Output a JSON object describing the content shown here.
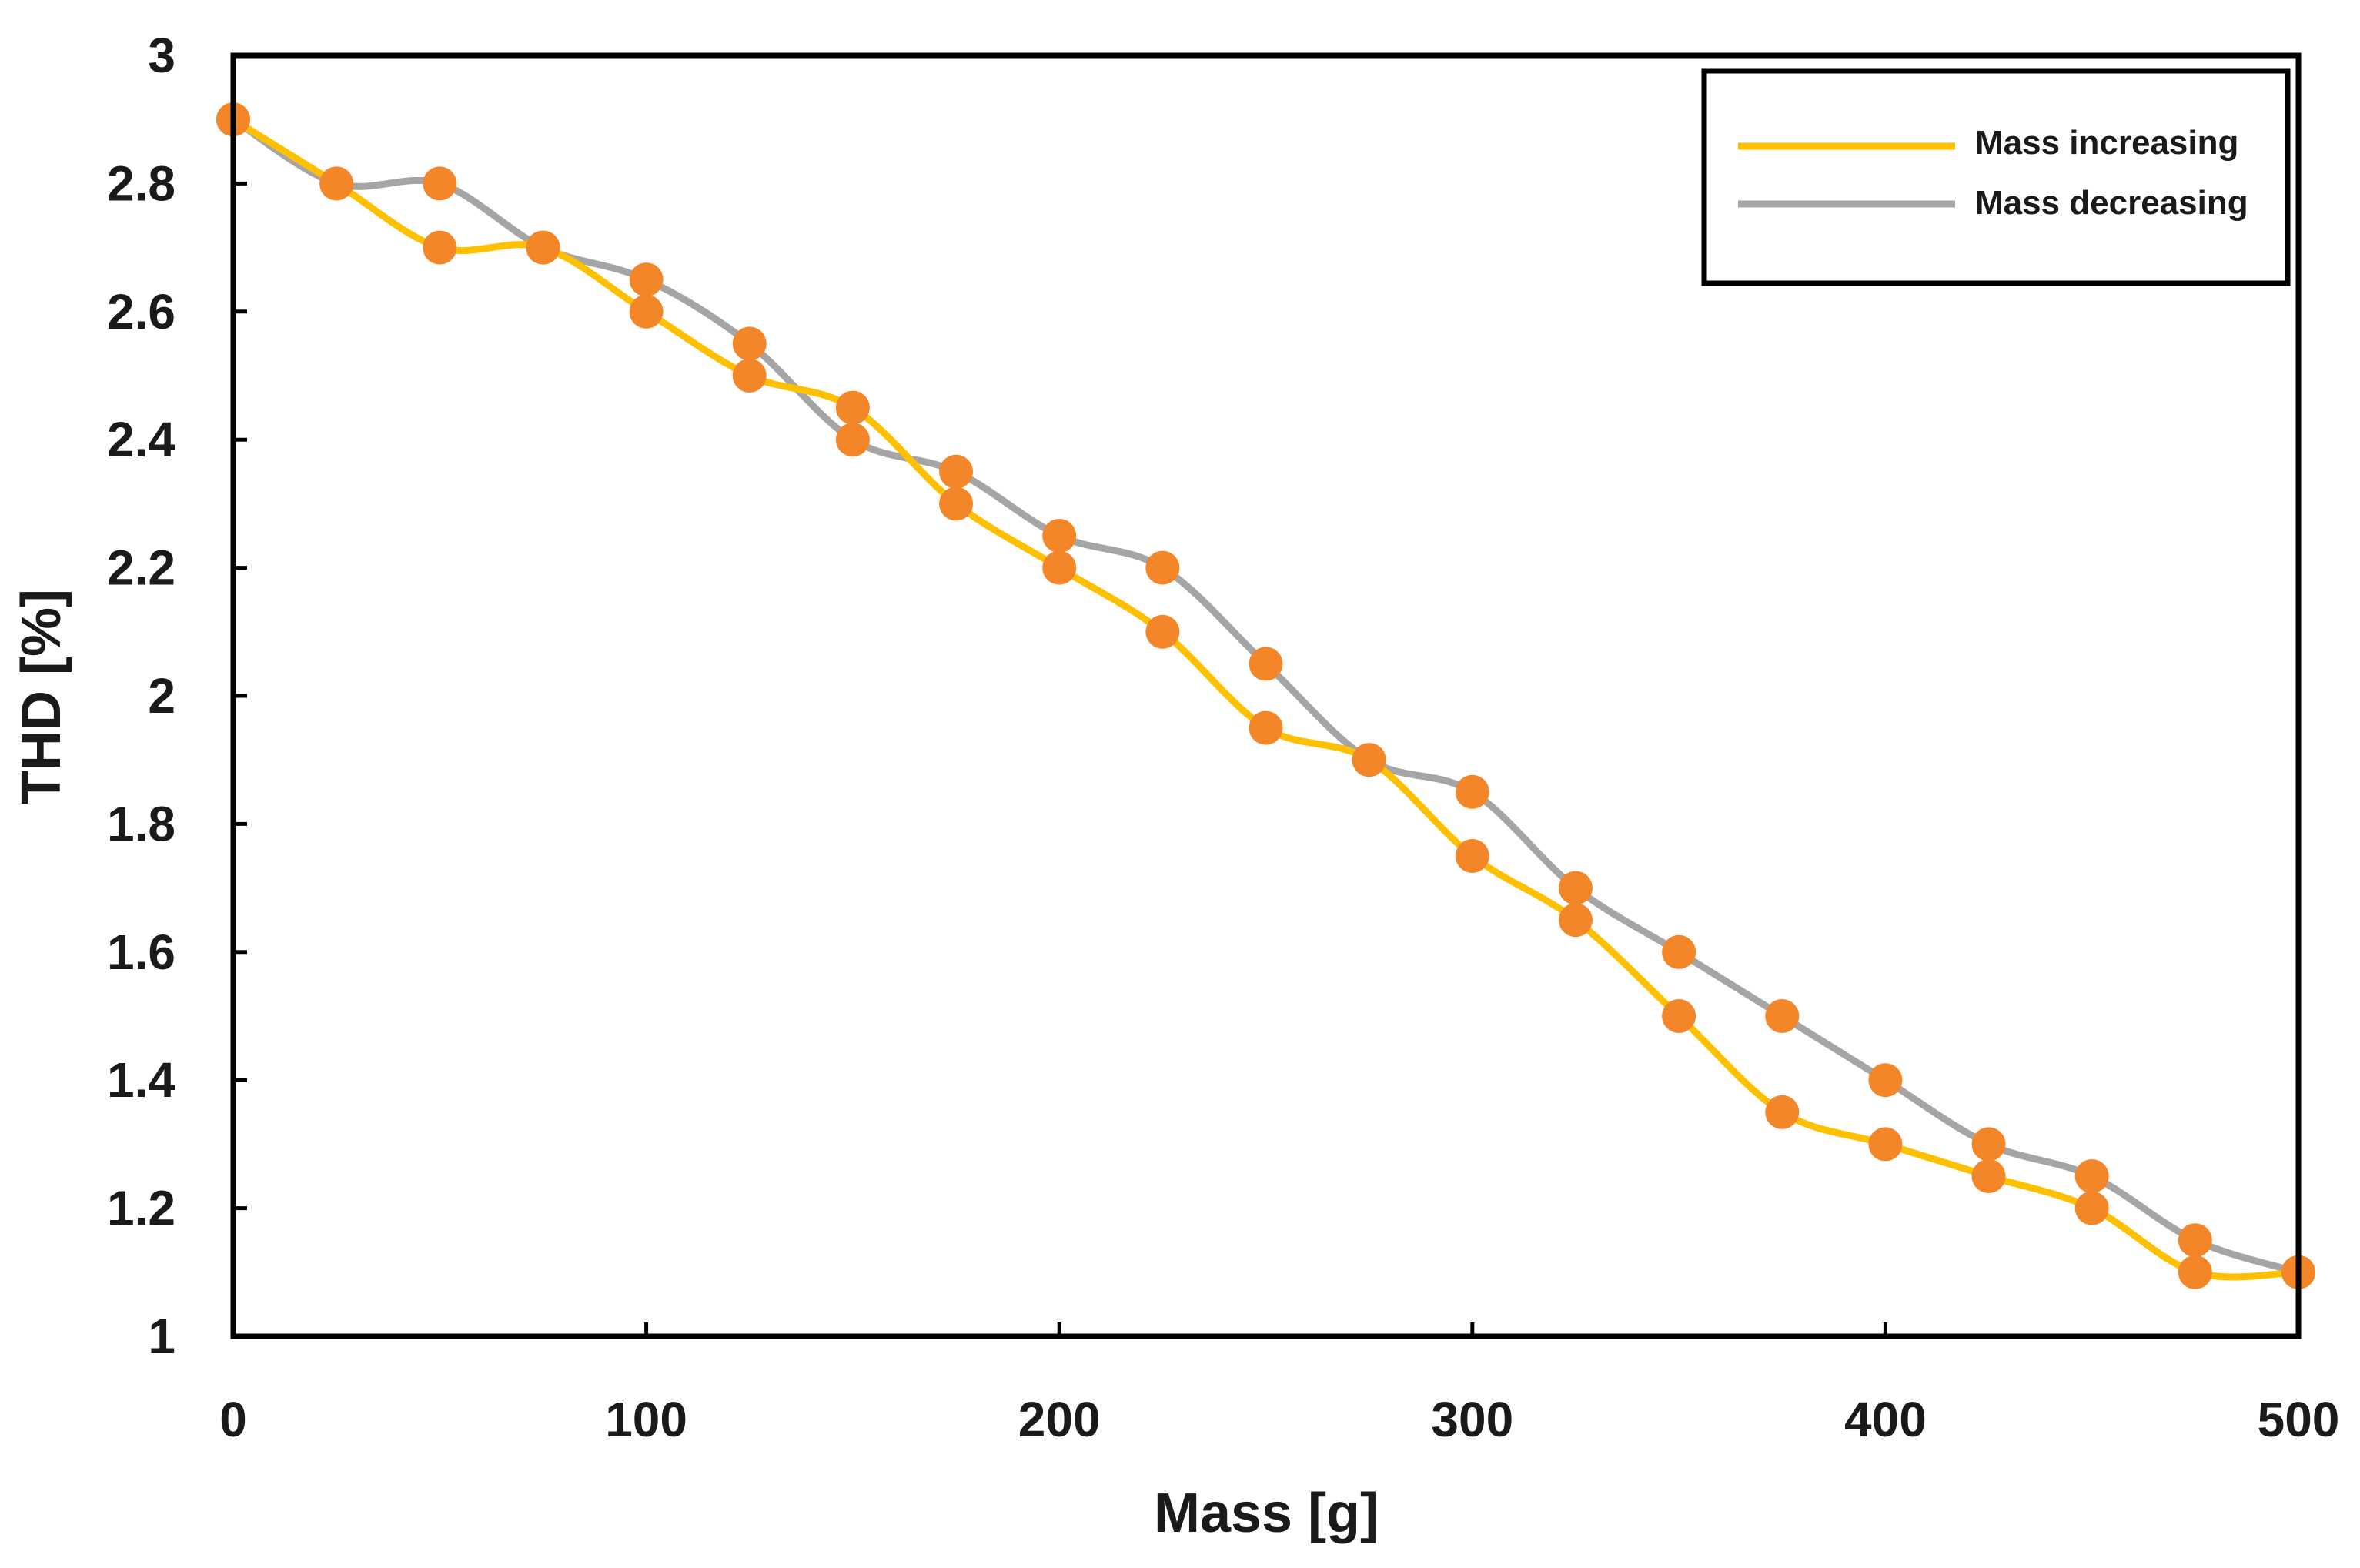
{
  "chart_data": {
    "type": "line",
    "title": "",
    "xlabel": "Mass [g]",
    "ylabel": "THD [%]",
    "xlim": [
      0,
      500
    ],
    "ylim": [
      1,
      3
    ],
    "xticks": [
      "0",
      "100",
      "200",
      "300",
      "400",
      "500"
    ],
    "yticks": [
      "1",
      "1.2",
      "1.4",
      "1.6",
      "1.8",
      "2",
      "2.2",
      "2.4",
      "2.6",
      "2.8",
      "3"
    ],
    "grid": false,
    "legend_position": "top-right",
    "x": [
      0,
      25,
      50,
      75,
      100,
      125,
      150,
      175,
      200,
      225,
      250,
      275,
      300,
      325,
      350,
      375,
      400,
      425,
      450,
      475,
      500
    ],
    "series": [
      {
        "name": "Mass increasing",
        "color": "#FFC000",
        "values": [
          2.9,
          2.8,
          2.7,
          2.7,
          2.6,
          2.5,
          2.45,
          2.3,
          2.2,
          2.1,
          1.95,
          1.9,
          1.75,
          1.65,
          1.5,
          1.35,
          1.3,
          1.25,
          1.2,
          1.1,
          1.1
        ]
      },
      {
        "name": "Mass decreasing",
        "color": "#A5A5A5",
        "values": [
          2.9,
          2.8,
          2.8,
          2.7,
          2.65,
          2.55,
          2.4,
          2.35,
          2.25,
          2.2,
          2.05,
          1.9,
          1.85,
          1.7,
          1.6,
          1.5,
          1.4,
          1.3,
          1.25,
          1.15,
          1.1
        ]
      }
    ],
    "marker_color": "#F4862A"
  }
}
